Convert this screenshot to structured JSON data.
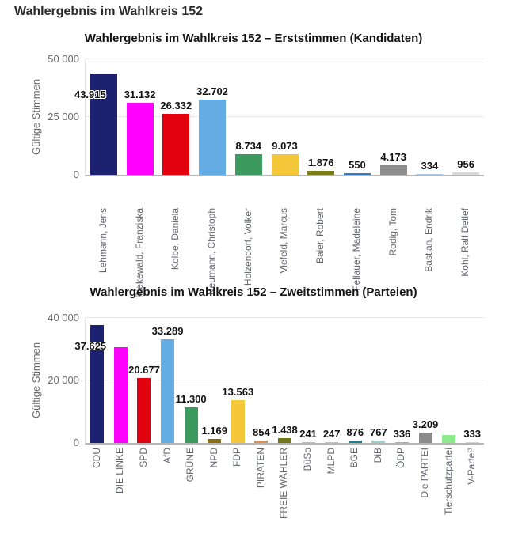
{
  "page": {
    "title": "Wahlergebnis im Wahlkreis 152"
  },
  "chart_data": [
    {
      "type": "bar",
      "title": "Wahlergebnis im Wahlkreis 152 – Erststimmen (Kandidaten)",
      "xlabel": "",
      "ylabel": "Gültige Stimmen",
      "ylim": [
        0,
        50000
      ],
      "grid": true,
      "legend": false,
      "yticks": [
        {
          "value": 0,
          "label": "0"
        },
        {
          "value": 25000,
          "label": "25 000"
        },
        {
          "value": 50000,
          "label": "50 000"
        }
      ],
      "categories": [
        "Lehmann, Jens",
        "Riekewald, Franziska",
        "Kolbe, Daniela",
        "Neumann, Christoph",
        "Holzendorf, Volker",
        "Viefeld, Marcus",
        "Baier, Robert",
        "Fellauer, Madeleine",
        "Rodig, Tom",
        "Bastian, Endrik",
        "Kohl, Ralf Detlef"
      ],
      "values": [
        43915,
        31132,
        26332,
        32702,
        8734,
        9073,
        1876,
        550,
        4173,
        334,
        956
      ],
      "value_labels": [
        "43.915",
        "31.132",
        "26.332",
        "32.702",
        "8.734",
        "9.073",
        "1.876",
        "550",
        "4.173",
        "334",
        "956"
      ],
      "colors": [
        "#1c2170",
        "#ff00ff",
        "#e3000f",
        "#64ace4",
        "#3c9a5f",
        "#f5c73a",
        "#7a7d1a",
        "#2e7cbf",
        "#8c8c8c",
        "#aecbe8",
        "#d9d9d9"
      ]
    },
    {
      "type": "bar",
      "title": "Wahlergebnis im Wahlkreis 152 – Zweitstimmen (Parteien)",
      "xlabel": "",
      "ylabel": "Gültige Stimmen",
      "ylim": [
        0,
        40000
      ],
      "grid": true,
      "legend": false,
      "yticks": [
        {
          "value": 0,
          "label": "0"
        },
        {
          "value": 20000,
          "label": "20 000"
        },
        {
          "value": 40000,
          "label": "40 000"
        }
      ],
      "categories": [
        "CDU",
        "DIE LINKE",
        "SPD",
        "AfD",
        "GRÜNE",
        "NPD",
        "FDP",
        "PIRATEN",
        "FREIE WÄHLER",
        "BüSo",
        "MLPD",
        "BGE",
        "DiB",
        "ÖDP",
        "Die PARTEI",
        "Tierschutzpartei",
        "V-Partei³"
      ],
      "values": [
        37625,
        30700,
        20677,
        33289,
        11300,
        1169,
        13563,
        854,
        1438,
        241,
        247,
        876,
        767,
        336,
        3209,
        2600,
        333
      ],
      "value_labels": [
        "37.625",
        "",
        "20.677",
        "33.289",
        "11.300",
        "1.169",
        "13.563",
        "854",
        "1.438",
        "241",
        "247",
        "876",
        "767",
        "336",
        "3.209",
        "",
        "333"
      ],
      "colors": [
        "#1c2170",
        "#ff00ff",
        "#e3000f",
        "#64ace4",
        "#3c9a5f",
        "#8a6d0f",
        "#f5c73a",
        "#de8f4e",
        "#70761a",
        "#c0c0c0",
        "#c0c0c0",
        "#1e7f8c",
        "#9ad0d0",
        "#f0a04a",
        "#8c8c8c",
        "#8fe98f",
        "#bfe8bf"
      ]
    }
  ]
}
